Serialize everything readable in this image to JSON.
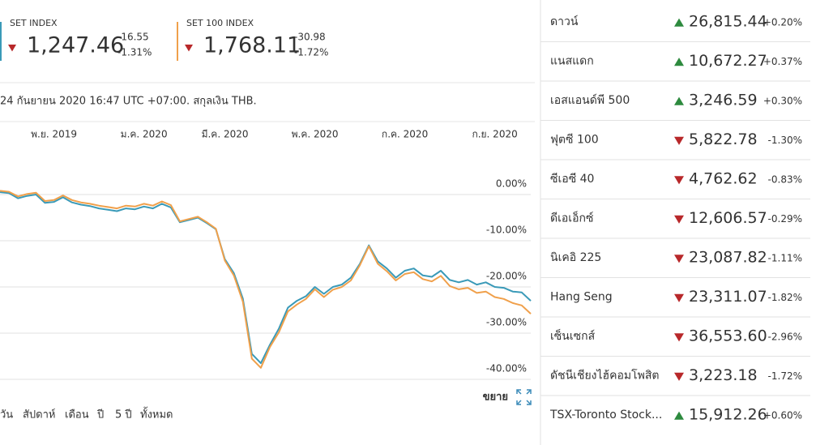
{
  "cards": [
    {
      "value": "1,247.46",
      "change": "-16.55",
      "change_pct": "-1.31%"
    },
    {
      "value": "1,768.11",
      "change": "-30.98",
      "change_pct": "-1.72%"
    }
  ],
  "timestamp": "24 กันยายน 2020 16:47 UTC +07:00. สกุลเงิน THB.",
  "chart_data": {
    "type": "line",
    "categories": [
      null,
      null,
      null,
      null,
      null,
      null,
      "พ.ย. 2019",
      null,
      null,
      null,
      null,
      null,
      null,
      null,
      null,
      null,
      "ม.ค. 2020",
      null,
      null,
      null,
      null,
      null,
      null,
      null,
      null,
      "มี.ค. 2020",
      null,
      null,
      null,
      null,
      null,
      null,
      null,
      null,
      null,
      "พ.ค. 2020",
      null,
      null,
      null,
      null,
      null,
      null,
      null,
      null,
      null,
      "ก.ค. 2020",
      null,
      null,
      null,
      null,
      null,
      null,
      null,
      null,
      null,
      "ก.ย. 2020",
      null,
      null,
      null,
      null
    ],
    "series": [
      {
        "name": "SET INDEX",
        "color": "#3a9ab8",
        "values": [
          0.5,
          0.3,
          -0.8,
          -0.3,
          0,
          -1.8,
          -1.6,
          -0.6,
          -1.7,
          -2.2,
          -2.5,
          -3.0,
          -3.3,
          -3.6,
          -3.0,
          -3.2,
          -2.6,
          -3.0,
          -2.0,
          -2.8,
          -6.0,
          -5.5,
          -5.0,
          -6.2,
          -7.5,
          -14.0,
          -17.0,
          -22.5,
          -34.5,
          -36.5,
          -32.5,
          -29.0,
          -24.5,
          -23.0,
          -22.0,
          -20.0,
          -21.5,
          -20.0,
          -19.5,
          -18.0,
          -15.0,
          -11.0,
          -14.5,
          -16.0,
          -18.0,
          -16.5,
          -16.0,
          -17.5,
          -17.8,
          -16.5,
          -18.5,
          -19.0,
          -18.5,
          -19.5,
          -19.0,
          -20.0,
          -20.2,
          -21.0,
          -21.2,
          -23.0
        ]
      },
      {
        "name": "SET 100 INDEX",
        "color": "#f0a04b",
        "values": [
          0.8,
          0.6,
          -0.4,
          0.1,
          0.4,
          -1.4,
          -1.2,
          -0.2,
          -1.2,
          -1.7,
          -2.0,
          -2.4,
          -2.7,
          -3.0,
          -2.4,
          -2.6,
          -2.0,
          -2.4,
          -1.5,
          -2.3,
          -5.8,
          -5.3,
          -4.8,
          -6.0,
          -7.4,
          -14.3,
          -17.5,
          -23.2,
          -35.5,
          -37.5,
          -33.0,
          -29.8,
          -25.3,
          -23.8,
          -22.6,
          -20.5,
          -22.2,
          -20.6,
          -20.0,
          -18.6,
          -15.3,
          -11.2,
          -15.0,
          -16.6,
          -18.6,
          -17.2,
          -16.8,
          -18.3,
          -18.8,
          -17.6,
          -19.8,
          -20.5,
          -20.2,
          -21.3,
          -21.0,
          -22.2,
          -22.6,
          -23.5,
          -24.0,
          -25.8
        ]
      }
    ],
    "ylim": [
      -40,
      8
    ],
    "yticks": [
      {
        "value": 0,
        "label": "0.00%"
      },
      {
        "value": -10,
        "label": "-10.00%"
      },
      {
        "value": -20,
        "label": "-20.00%"
      },
      {
        "value": -30,
        "label": "-30.00%"
      },
      {
        "value": -40,
        "label": "-40.00%"
      }
    ],
    "grid": true
  },
  "expand_label": "ขยาย",
  "ranges": [
    "วัน",
    "สัปดาห์",
    "เดือน",
    "ปี",
    "5 ปี",
    "ทั้งหมด"
  ],
  "markets": [
    {
      "name": "ดาวน์",
      "direction": "up",
      "value": "26,815.44",
      "change": "+0.20%"
    },
    {
      "name": "แนสแดก",
      "direction": "up",
      "value": "10,672.27",
      "change": "+0.37%"
    },
    {
      "name": "เอสแอนด์พี 500",
      "direction": "up",
      "value": "3,246.59",
      "change": "+0.30%"
    },
    {
      "name": "ฟุตซี 100",
      "direction": "down",
      "value": "5,822.78",
      "change": "-1.30%"
    },
    {
      "name": "ซีเอซี 40",
      "direction": "down",
      "value": "4,762.62",
      "change": "-0.83%"
    },
    {
      "name": "ดีเอเอ็กซ์",
      "direction": "down",
      "value": "12,606.57",
      "change": "-0.29%"
    },
    {
      "name": "นิเคอิ 225",
      "direction": "down",
      "value": "23,087.82",
      "change": "-1.11%"
    },
    {
      "name": "Hang Seng",
      "direction": "down",
      "value": "23,311.07",
      "change": "-1.82%"
    },
    {
      "name": "เซ็นเซกส์",
      "direction": "down",
      "value": "36,553.60",
      "change": "-2.96%"
    },
    {
      "name": "ดัชนีเชียงไฮ้คอมโพสิต",
      "direction": "down",
      "value": "3,223.18",
      "change": "-1.72%"
    },
    {
      "name": "TSX-Toronto Stock...",
      "direction": "up",
      "value": "15,912.26",
      "change": "+0.60%"
    }
  ]
}
